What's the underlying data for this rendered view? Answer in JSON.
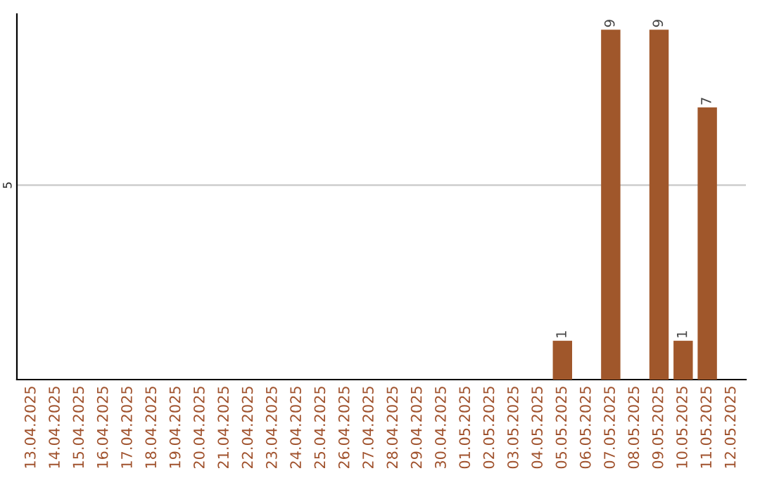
{
  "chart_data": {
    "type": "bar",
    "categories": [
      "13.04.2025",
      "14.04.2025",
      "15.04.2025",
      "16.04.2025",
      "17.04.2025",
      "18.04.2025",
      "19.04.2025",
      "20.04.2025",
      "21.04.2025",
      "22.04.2025",
      "23.04.2025",
      "24.04.2025",
      "25.04.2025",
      "26.04.2025",
      "27.04.2025",
      "28.04.2025",
      "29.04.2025",
      "30.04.2025",
      "01.05.2025",
      "02.05.2025",
      "03.05.2025",
      "04.05.2025",
      "05.05.2025",
      "06.05.2025",
      "07.05.2025",
      "08.05.2025",
      "09.05.2025",
      "10.05.2025",
      "11.05.2025",
      "12.05.2025"
    ],
    "values": [
      null,
      null,
      null,
      null,
      null,
      null,
      null,
      null,
      null,
      null,
      null,
      null,
      null,
      null,
      null,
      null,
      null,
      null,
      null,
      null,
      null,
      null,
      1,
      null,
      9,
      null,
      9,
      1,
      7,
      null
    ],
    "value_labels": [
      null,
      null,
      null,
      null,
      null,
      null,
      null,
      null,
      null,
      null,
      null,
      null,
      null,
      null,
      null,
      null,
      null,
      null,
      null,
      null,
      null,
      null,
      "1",
      null,
      "9",
      null,
      "9",
      "1",
      "7",
      null
    ],
    "color": "#a0572b",
    "ylim": [
      0,
      9.4
    ],
    "ref_lines": [
      {
        "axis": "y",
        "value": 5,
        "label": "5",
        "color": "#c8c8c8"
      }
    ]
  }
}
